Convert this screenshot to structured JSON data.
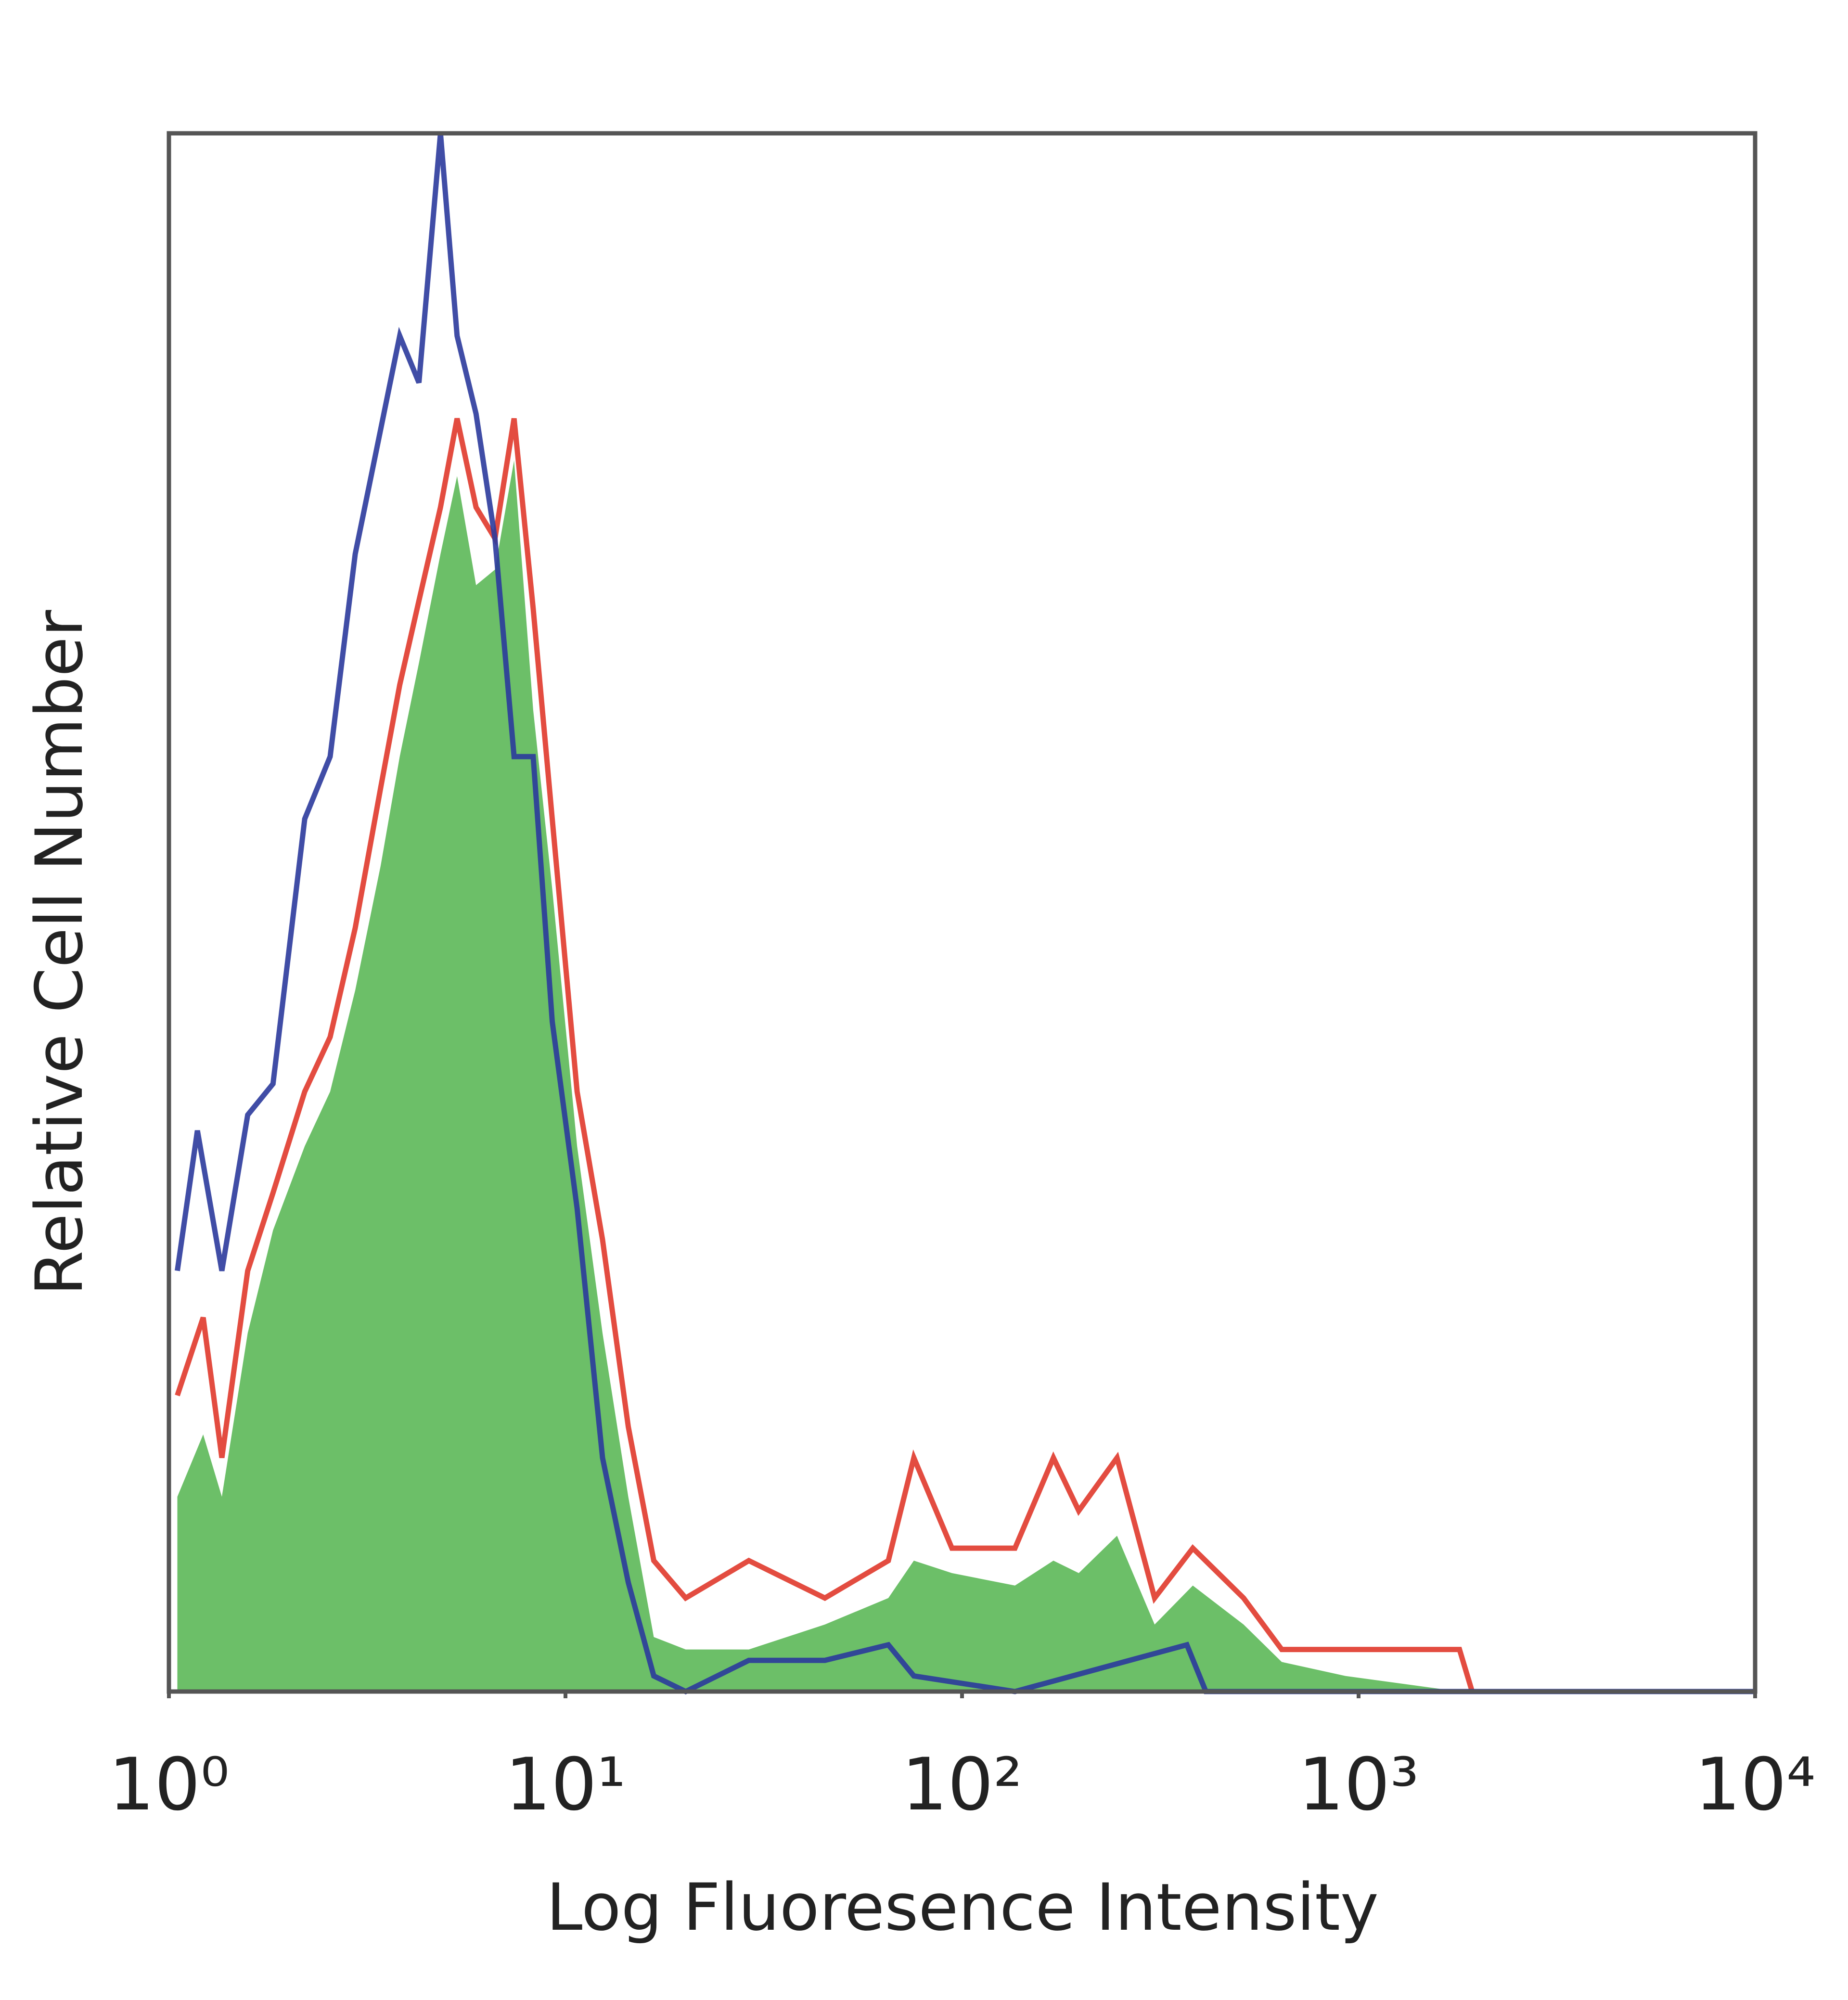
{
  "chart_data": {
    "type": "histogram",
    "xlabel": "Log Fluoresence Intensity",
    "ylabel": "Relative Cell Number",
    "xscale": "log",
    "xlim": [
      1,
      10000
    ],
    "xticks": [
      {
        "value": 1,
        "label": "10⁰"
      },
      {
        "value": 10,
        "label": "10¹"
      },
      {
        "value": 100,
        "label": "10²"
      },
      {
        "value": 1000,
        "label": "10³"
      },
      {
        "value": 10000,
        "label": "10⁴"
      }
    ],
    "ylim": [
      0,
      100
    ],
    "series": [
      {
        "name": "green",
        "color": "#6cbf68",
        "filled": true,
        "x": [
          1.05,
          1.22,
          1.36,
          1.58,
          1.83,
          2.2,
          2.55,
          2.95,
          3.42,
          3.82,
          4.27,
          4.84,
          5.33,
          5.95,
          6.64,
          7.42,
          8.29,
          9.26,
          10.7,
          12.4,
          14.4,
          16.7,
          20.1,
          29.0,
          45.1,
          65.2,
          75.6,
          94.3,
          136,
          170,
          197,
          246,
          306,
          382,
          513,
          640,
          926,
          1797,
          1934
        ],
        "values": [
          12.5,
          16.5,
          12.5,
          23,
          29.6,
          35,
          38.5,
          45,
          53,
          60,
          66,
          73,
          78,
          71,
          72,
          79,
          63,
          51.5,
          35,
          23,
          12.5,
          3.5,
          2.7,
          2.7,
          4.3,
          6,
          8.4,
          7.6,
          6.8,
          8.4,
          7.6,
          10,
          4.3,
          6.8,
          4.3,
          1.9,
          1,
          0,
          0
        ]
      },
      {
        "name": "red",
        "color": "#e0392b",
        "filled": false,
        "x": [
          1.05,
          1.22,
          1.36,
          1.58,
          1.83,
          2.2,
          2.55,
          2.95,
          3.42,
          3.82,
          4.27,
          4.84,
          5.33,
          5.95,
          6.64,
          7.42,
          8.29,
          9.26,
          10.7,
          12.4,
          14.4,
          16.7,
          20.1,
          29.0,
          45.1,
          65.2,
          75.6,
          94.3,
          136,
          170,
          197,
          246,
          306,
          382,
          513,
          640,
          926,
          1797,
          1934
        ],
        "values": [
          19,
          24,
          15,
          27,
          32,
          38.5,
          42,
          49,
          58,
          64.6,
          70,
          76,
          81.7,
          76,
          74,
          81.7,
          69.5,
          56,
          38.5,
          29,
          17,
          8.4,
          6,
          8.4,
          6,
          8.4,
          15,
          9.2,
          9.2,
          15,
          11.6,
          15,
          6,
          9.2,
          6,
          2.7,
          2.7,
          2.7,
          0
        ]
      },
      {
        "name": "blue",
        "color": "#2b3a9c",
        "filled": false,
        "x": [
          1.05,
          1.18,
          1.36,
          1.58,
          1.83,
          2.2,
          2.55,
          2.95,
          3.42,
          3.82,
          4.27,
          4.84,
          5.33,
          5.95,
          6.64,
          7.42,
          8.29,
          9.26,
          10.7,
          12.4,
          14.4,
          16.7,
          20.1,
          29.0,
          45.1,
          65.2,
          75.6,
          136,
          369,
          412,
          10000
        ],
        "values": [
          27,
          36,
          27,
          37,
          39,
          56,
          60,
          73,
          81,
          87,
          84,
          100,
          87,
          82,
          74,
          60,
          60,
          43,
          31,
          15,
          7,
          1,
          0,
          2,
          2,
          3,
          1,
          0,
          3,
          0,
          0
        ]
      }
    ]
  }
}
